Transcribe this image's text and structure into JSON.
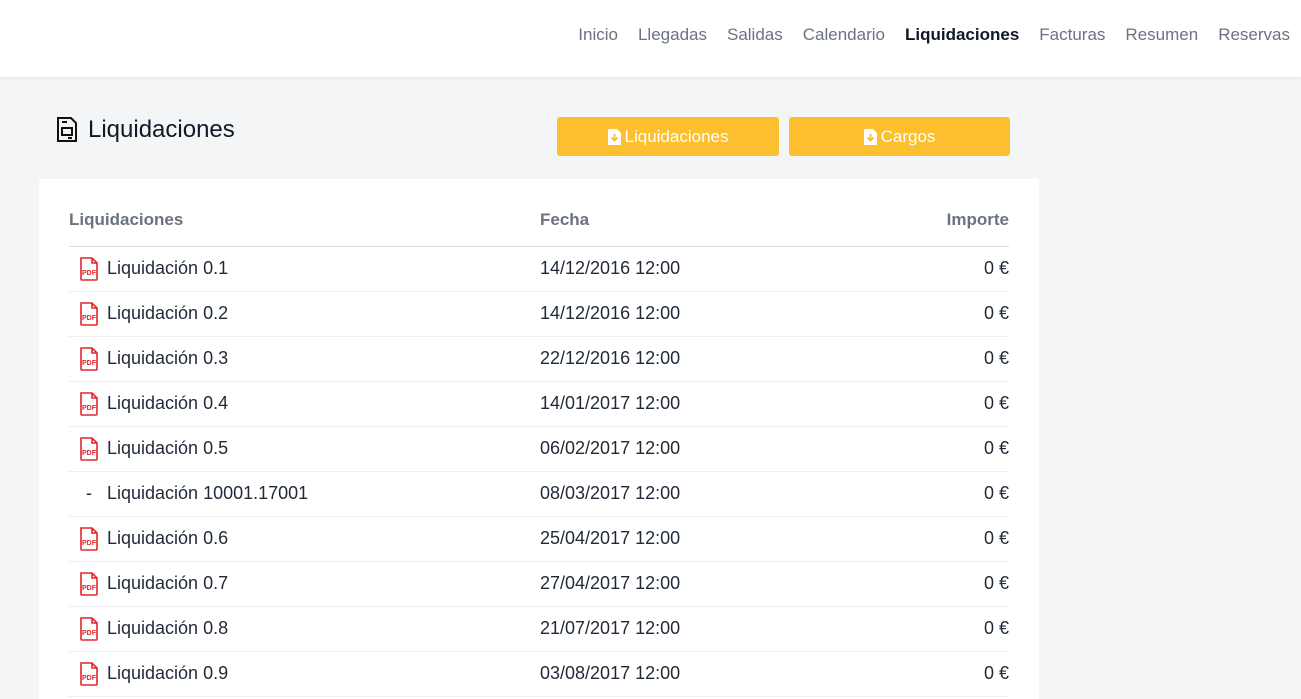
{
  "nav": {
    "items": [
      "Inicio",
      "Llegadas",
      "Salidas",
      "Calendario",
      "Liquidaciones",
      "Facturas",
      "Resumen",
      "Reservas"
    ],
    "active": "Liquidaciones"
  },
  "page": {
    "title": "Liquidaciones",
    "btn_liquidaciones": "Liquidaciones",
    "btn_cargos": "Cargos",
    "accent": "#fbbf2f"
  },
  "table": {
    "headers": [
      "Liquidaciones",
      "Fecha",
      "Importe"
    ],
    "rows": [
      {
        "name": "Liquidación 0.1",
        "date": "14/12/2016 12:00",
        "amount": "0 €",
        "pdf": true
      },
      {
        "name": "Liquidación 0.2",
        "date": "14/12/2016 12:00",
        "amount": "0 €",
        "pdf": true
      },
      {
        "name": "Liquidación 0.3",
        "date": "22/12/2016 12:00",
        "amount": "0 €",
        "pdf": true
      },
      {
        "name": "Liquidación 0.4",
        "date": "14/01/2017 12:00",
        "amount": "0 €",
        "pdf": true
      },
      {
        "name": "Liquidación 0.5",
        "date": "06/02/2017 12:00",
        "amount": "0 €",
        "pdf": true
      },
      {
        "name": "Liquidación 10001.17001",
        "date": "08/03/2017 12:00",
        "amount": "0 €",
        "pdf": false,
        "marker": "-"
      },
      {
        "name": "Liquidación 0.6",
        "date": "25/04/2017 12:00",
        "amount": "0 €",
        "pdf": true
      },
      {
        "name": "Liquidación 0.7",
        "date": "27/04/2017 12:00",
        "amount": "0 €",
        "pdf": true
      },
      {
        "name": "Liquidación 0.8",
        "date": "21/07/2017 12:00",
        "amount": "0 €",
        "pdf": true
      },
      {
        "name": "Liquidación 0.9",
        "date": "03/08/2017 12:00",
        "amount": "0 €",
        "pdf": true
      }
    ]
  }
}
